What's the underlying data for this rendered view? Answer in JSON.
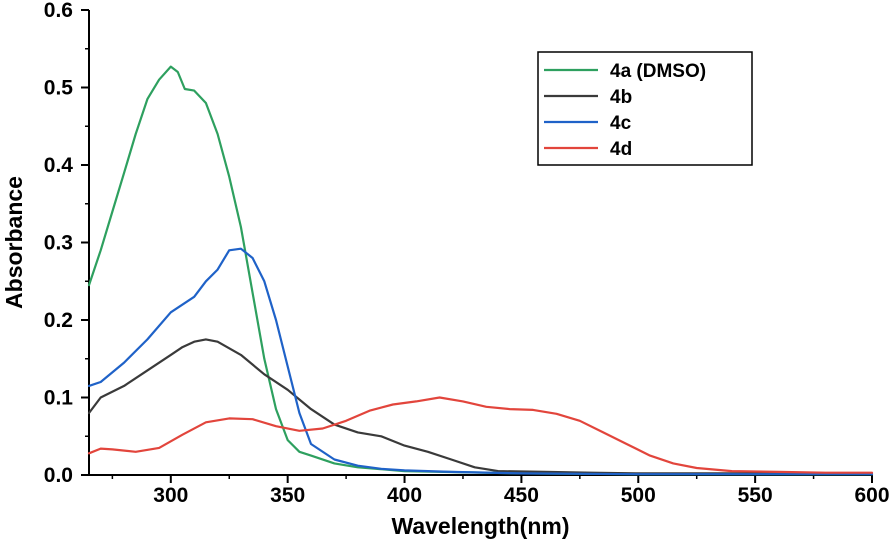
{
  "chart_data": {
    "type": "line",
    "title": "",
    "xlabel": "Wavelength(nm)",
    "ylabel": "Absorbance",
    "xlim": [
      265,
      600
    ],
    "ylim": [
      0.0,
      0.6
    ],
    "x_ticks": [
      300,
      350,
      400,
      450,
      500,
      550,
      600
    ],
    "x_tick_labels": [
      "300",
      "350",
      "400",
      "450",
      "500",
      "550",
      "600"
    ],
    "y_ticks": [
      0.0,
      0.1,
      0.2,
      0.3,
      0.4,
      0.5,
      0.6
    ],
    "y_tick_labels": [
      "0.0",
      "0.1",
      "0.2",
      "0.3",
      "0.4",
      "0.5",
      "0.6"
    ],
    "grid": false,
    "legend_position": "top-right",
    "series": [
      {
        "name": "4a (DMSO)",
        "color": "#2ea05f",
        "points": [
          [
            265,
            0.245
          ],
          [
            270,
            0.29
          ],
          [
            275,
            0.34
          ],
          [
            280,
            0.39
          ],
          [
            285,
            0.44
          ],
          [
            290,
            0.485
          ],
          [
            295,
            0.51
          ],
          [
            300,
            0.527
          ],
          [
            303,
            0.52
          ],
          [
            306,
            0.498
          ],
          [
            310,
            0.496
          ],
          [
            315,
            0.48
          ],
          [
            320,
            0.44
          ],
          [
            325,
            0.385
          ],
          [
            330,
            0.32
          ],
          [
            335,
            0.235
          ],
          [
            340,
            0.15
          ],
          [
            345,
            0.085
          ],
          [
            350,
            0.045
          ],
          [
            355,
            0.03
          ],
          [
            360,
            0.025
          ],
          [
            370,
            0.015
          ],
          [
            380,
            0.01
          ],
          [
            400,
            0.005
          ],
          [
            450,
            0.002
          ],
          [
            500,
            0.001
          ],
          [
            550,
            0.001
          ],
          [
            600,
            0.001
          ]
        ]
      },
      {
        "name": "4b",
        "color": "#3a3a3a",
        "points": [
          [
            265,
            0.08
          ],
          [
            270,
            0.1
          ],
          [
            280,
            0.115
          ],
          [
            290,
            0.135
          ],
          [
            300,
            0.155
          ],
          [
            305,
            0.165
          ],
          [
            310,
            0.172
          ],
          [
            315,
            0.175
          ],
          [
            320,
            0.172
          ],
          [
            330,
            0.155
          ],
          [
            340,
            0.13
          ],
          [
            350,
            0.11
          ],
          [
            360,
            0.085
          ],
          [
            370,
            0.065
          ],
          [
            380,
            0.055
          ],
          [
            390,
            0.05
          ],
          [
            400,
            0.038
          ],
          [
            410,
            0.03
          ],
          [
            420,
            0.02
          ],
          [
            430,
            0.01
          ],
          [
            440,
            0.005
          ],
          [
            460,
            0.004
          ],
          [
            480,
            0.003
          ],
          [
            500,
            0.002
          ],
          [
            550,
            0.002
          ],
          [
            600,
            0.002
          ]
        ]
      },
      {
        "name": "4c",
        "color": "#1f62c8",
        "points": [
          [
            265,
            0.115
          ],
          [
            270,
            0.12
          ],
          [
            280,
            0.145
          ],
          [
            290,
            0.175
          ],
          [
            300,
            0.21
          ],
          [
            310,
            0.23
          ],
          [
            315,
            0.25
          ],
          [
            320,
            0.265
          ],
          [
            325,
            0.29
          ],
          [
            330,
            0.292
          ],
          [
            335,
            0.28
          ],
          [
            340,
            0.25
          ],
          [
            345,
            0.2
          ],
          [
            350,
            0.14
          ],
          [
            355,
            0.08
          ],
          [
            360,
            0.04
          ],
          [
            370,
            0.02
          ],
          [
            380,
            0.012
          ],
          [
            390,
            0.008
          ],
          [
            400,
            0.006
          ],
          [
            420,
            0.004
          ],
          [
            450,
            0.002
          ],
          [
            500,
            0.001
          ],
          [
            550,
            0.001
          ],
          [
            600,
            0.001
          ]
        ]
      },
      {
        "name": "4d",
        "color": "#e2453c",
        "points": [
          [
            265,
            0.028
          ],
          [
            270,
            0.034
          ],
          [
            275,
            0.033
          ],
          [
            285,
            0.03
          ],
          [
            295,
            0.035
          ],
          [
            305,
            0.052
          ],
          [
            315,
            0.068
          ],
          [
            325,
            0.073
          ],
          [
            335,
            0.072
          ],
          [
            345,
            0.063
          ],
          [
            355,
            0.057
          ],
          [
            365,
            0.06
          ],
          [
            375,
            0.07
          ],
          [
            385,
            0.083
          ],
          [
            395,
            0.091
          ],
          [
            405,
            0.095
          ],
          [
            415,
            0.1
          ],
          [
            425,
            0.095
          ],
          [
            435,
            0.088
          ],
          [
            445,
            0.085
          ],
          [
            455,
            0.084
          ],
          [
            465,
            0.079
          ],
          [
            475,
            0.07
          ],
          [
            485,
            0.055
          ],
          [
            495,
            0.04
          ],
          [
            505,
            0.025
          ],
          [
            515,
            0.015
          ],
          [
            525,
            0.009
          ],
          [
            540,
            0.005
          ],
          [
            560,
            0.004
          ],
          [
            580,
            0.003
          ],
          [
            600,
            0.003
          ]
        ]
      }
    ]
  }
}
